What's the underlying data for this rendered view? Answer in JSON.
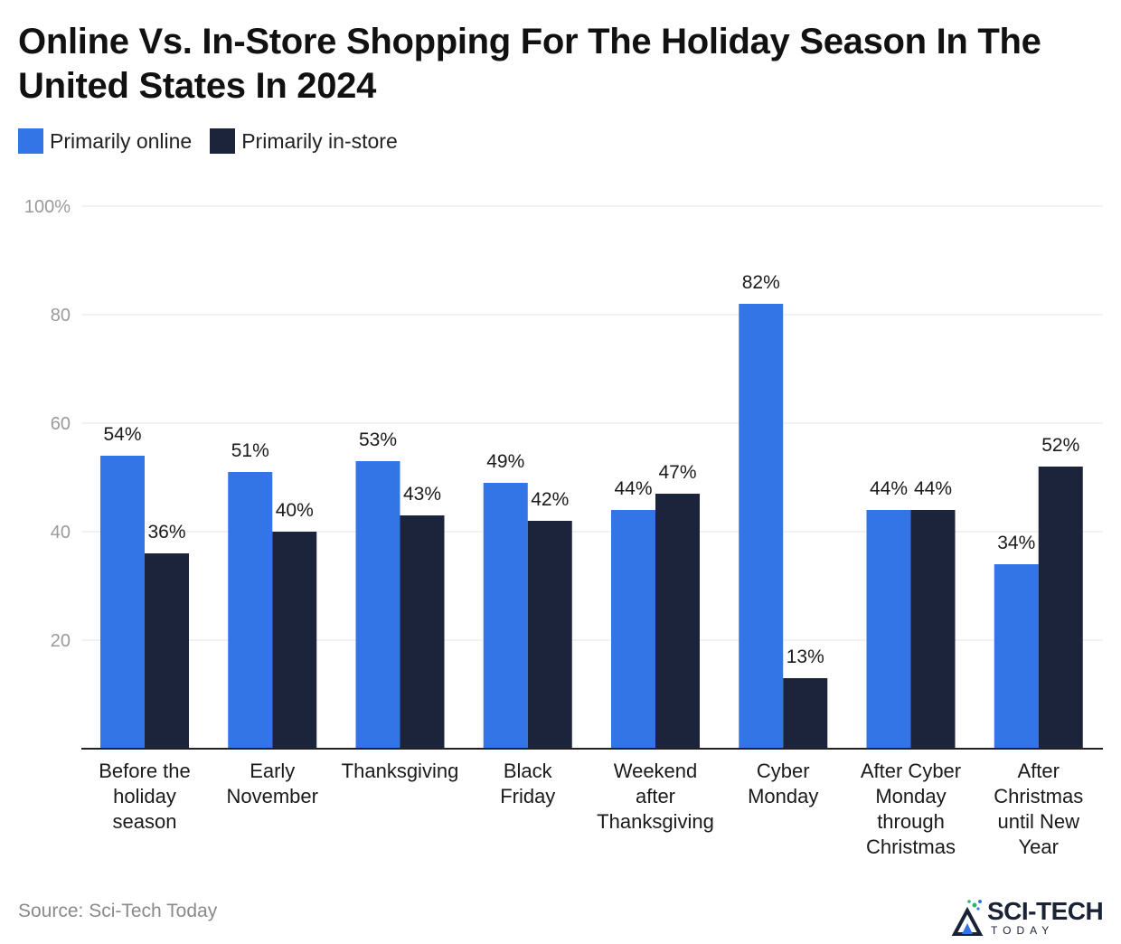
{
  "title": "Online Vs. In-Store Shopping For The Holiday Season In The United States In 2024",
  "source": "Source: Sci-Tech Today",
  "logo": {
    "name": "SCI-TECH",
    "sub": "TODAY"
  },
  "colors": {
    "online": "#3375E6",
    "instore": "#1B243B",
    "grid": "#E6E6E6",
    "axis": "#222222",
    "tick": "#9A9A9A"
  },
  "chart_data": {
    "type": "bar",
    "title": "Online Vs. In-Store Shopping For The Holiday Season In The United States In 2024",
    "categories": [
      [
        "Before the",
        "holiday",
        "season"
      ],
      [
        "Early",
        "November"
      ],
      [
        "Thanksgiving"
      ],
      [
        "Black",
        "Friday"
      ],
      [
        "Weekend",
        "after",
        "Thanksgiving"
      ],
      [
        "Cyber",
        "Monday"
      ],
      [
        "After Cyber",
        "Monday",
        "through",
        "Christmas"
      ],
      [
        "After",
        "Christmas",
        "until New",
        "Year"
      ]
    ],
    "series": [
      {
        "name": "Primarily online",
        "values": [
          54,
          51,
          53,
          49,
          44,
          82,
          44,
          34
        ]
      },
      {
        "name": "Primarily in-store",
        "values": [
          36,
          40,
          43,
          42,
          47,
          13,
          44,
          52
        ]
      }
    ],
    "value_suffix": "%",
    "ylim": [
      0,
      100
    ],
    "yticks": [
      "",
      "20",
      "40",
      "60",
      "80",
      "100%"
    ],
    "grid": true,
    "legend_position": "top-left"
  }
}
